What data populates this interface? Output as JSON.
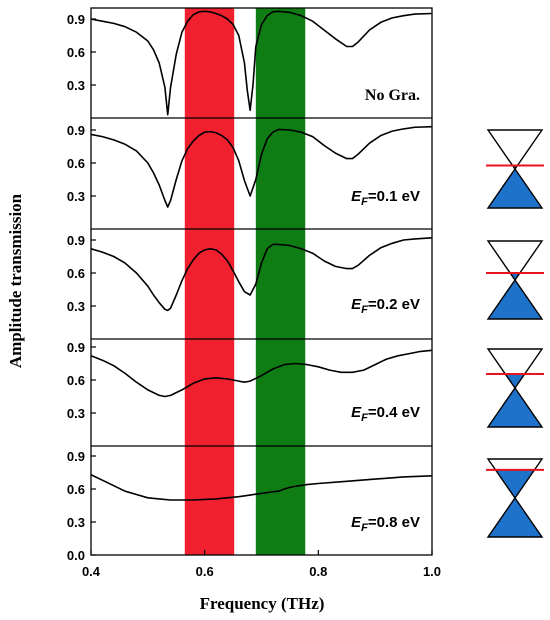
{
  "chart_data": {
    "type": "line",
    "xlabel": "Frequency (THz)",
    "ylabel": "Amplitude transmission",
    "xlim": [
      0.4,
      1.0
    ],
    "x_ticks": [
      "0.4",
      "0.6",
      "0.8",
      "1.0"
    ],
    "ylim": [
      0.0,
      1.0
    ],
    "y_ticks_top": [
      "0.3",
      "0.6",
      "0.9"
    ],
    "y_ticks_bottom": [
      "0.0",
      "0.3",
      "0.6",
      "0.9"
    ],
    "bands": [
      {
        "x0": 0.565,
        "x1": 0.652,
        "color": "#f1202e"
      },
      {
        "x0": 0.69,
        "x1": 0.777,
        "color": "#0f7d14"
      }
    ],
    "colors": {
      "dirac_fill": "#1f72c9",
      "fermi_line": "#e8141b"
    },
    "panels": [
      {
        "label": "No Gra.",
        "fermi_level": null,
        "x": [
          0.4,
          0.42,
          0.44,
          0.46,
          0.48,
          0.5,
          0.51,
          0.52,
          0.53,
          0.535,
          0.54,
          0.55,
          0.56,
          0.57,
          0.58,
          0.59,
          0.6,
          0.61,
          0.62,
          0.63,
          0.64,
          0.65,
          0.66,
          0.67,
          0.675,
          0.68,
          0.685,
          0.69,
          0.7,
          0.71,
          0.72,
          0.73,
          0.75,
          0.77,
          0.79,
          0.81,
          0.83,
          0.85,
          0.86,
          0.87,
          0.89,
          0.91,
          0.93,
          0.95,
          0.97,
          1.0
        ],
        "y": [
          0.9,
          0.88,
          0.86,
          0.83,
          0.78,
          0.7,
          0.62,
          0.5,
          0.28,
          0.03,
          0.28,
          0.58,
          0.78,
          0.88,
          0.94,
          0.965,
          0.97,
          0.965,
          0.95,
          0.93,
          0.9,
          0.85,
          0.75,
          0.5,
          0.25,
          0.07,
          0.3,
          0.65,
          0.85,
          0.93,
          0.965,
          0.97,
          0.96,
          0.93,
          0.88,
          0.8,
          0.72,
          0.65,
          0.65,
          0.69,
          0.8,
          0.87,
          0.91,
          0.93,
          0.945,
          0.95
        ]
      },
      {
        "label": "=0.1 eV",
        "label_prefix": "E",
        "label_sub": "F",
        "fermi_level": 0.1,
        "x": [
          0.4,
          0.42,
          0.44,
          0.46,
          0.48,
          0.5,
          0.51,
          0.52,
          0.53,
          0.535,
          0.54,
          0.55,
          0.56,
          0.57,
          0.58,
          0.59,
          0.6,
          0.61,
          0.62,
          0.63,
          0.64,
          0.65,
          0.66,
          0.67,
          0.68,
          0.69,
          0.7,
          0.71,
          0.72,
          0.73,
          0.75,
          0.77,
          0.79,
          0.81,
          0.83,
          0.85,
          0.86,
          0.87,
          0.89,
          0.91,
          0.93,
          0.95,
          0.97,
          1.0
        ],
        "y": [
          0.86,
          0.84,
          0.81,
          0.77,
          0.71,
          0.6,
          0.51,
          0.4,
          0.26,
          0.2,
          0.26,
          0.45,
          0.62,
          0.73,
          0.8,
          0.85,
          0.88,
          0.885,
          0.875,
          0.85,
          0.81,
          0.74,
          0.62,
          0.44,
          0.3,
          0.45,
          0.68,
          0.82,
          0.88,
          0.905,
          0.9,
          0.88,
          0.84,
          0.76,
          0.69,
          0.64,
          0.64,
          0.68,
          0.78,
          0.85,
          0.89,
          0.91,
          0.925,
          0.93
        ]
      },
      {
        "label": "=0.2 eV",
        "label_prefix": "E",
        "label_sub": "F",
        "fermi_level": 0.2,
        "x": [
          0.4,
          0.42,
          0.44,
          0.46,
          0.48,
          0.5,
          0.51,
          0.52,
          0.53,
          0.535,
          0.54,
          0.55,
          0.56,
          0.57,
          0.58,
          0.59,
          0.6,
          0.61,
          0.62,
          0.63,
          0.64,
          0.65,
          0.66,
          0.67,
          0.68,
          0.69,
          0.7,
          0.71,
          0.72,
          0.73,
          0.75,
          0.77,
          0.79,
          0.81,
          0.83,
          0.85,
          0.86,
          0.87,
          0.89,
          0.91,
          0.93,
          0.95,
          0.97,
          1.0
        ],
        "y": [
          0.82,
          0.79,
          0.75,
          0.69,
          0.6,
          0.48,
          0.4,
          0.33,
          0.27,
          0.26,
          0.28,
          0.4,
          0.53,
          0.64,
          0.72,
          0.78,
          0.81,
          0.82,
          0.81,
          0.77,
          0.71,
          0.62,
          0.52,
          0.43,
          0.4,
          0.5,
          0.69,
          0.82,
          0.86,
          0.86,
          0.85,
          0.82,
          0.78,
          0.71,
          0.66,
          0.64,
          0.64,
          0.67,
          0.76,
          0.83,
          0.87,
          0.9,
          0.91,
          0.92
        ]
      },
      {
        "label": "=0.4 eV",
        "label_prefix": "E",
        "label_sub": "F",
        "fermi_level": 0.4,
        "x": [
          0.4,
          0.42,
          0.44,
          0.46,
          0.48,
          0.5,
          0.52,
          0.53,
          0.54,
          0.56,
          0.58,
          0.6,
          0.62,
          0.64,
          0.66,
          0.67,
          0.68,
          0.7,
          0.72,
          0.74,
          0.76,
          0.78,
          0.8,
          0.82,
          0.84,
          0.86,
          0.88,
          0.9,
          0.92,
          0.94,
          0.96,
          0.98,
          1.0
        ],
        "y": [
          0.82,
          0.78,
          0.73,
          0.66,
          0.58,
          0.51,
          0.46,
          0.45,
          0.46,
          0.51,
          0.57,
          0.61,
          0.62,
          0.61,
          0.59,
          0.58,
          0.59,
          0.64,
          0.7,
          0.74,
          0.75,
          0.74,
          0.72,
          0.69,
          0.67,
          0.67,
          0.69,
          0.74,
          0.79,
          0.82,
          0.84,
          0.86,
          0.87
        ]
      },
      {
        "label": "=0.8 eV",
        "label_prefix": "E",
        "label_sub": "F",
        "fermi_level": 0.8,
        "x": [
          0.4,
          0.42,
          0.44,
          0.46,
          0.48,
          0.5,
          0.52,
          0.54,
          0.56,
          0.58,
          0.6,
          0.62,
          0.64,
          0.66,
          0.68,
          0.7,
          0.72,
          0.73,
          0.74,
          0.75,
          0.76,
          0.78,
          0.8,
          0.85,
          0.9,
          0.95,
          1.0
        ],
        "y": [
          0.73,
          0.68,
          0.63,
          0.58,
          0.55,
          0.52,
          0.51,
          0.5,
          0.5,
          0.5,
          0.505,
          0.51,
          0.52,
          0.53,
          0.545,
          0.56,
          0.575,
          0.58,
          0.6,
          0.615,
          0.625,
          0.64,
          0.65,
          0.67,
          0.69,
          0.71,
          0.72
        ]
      }
    ]
  }
}
